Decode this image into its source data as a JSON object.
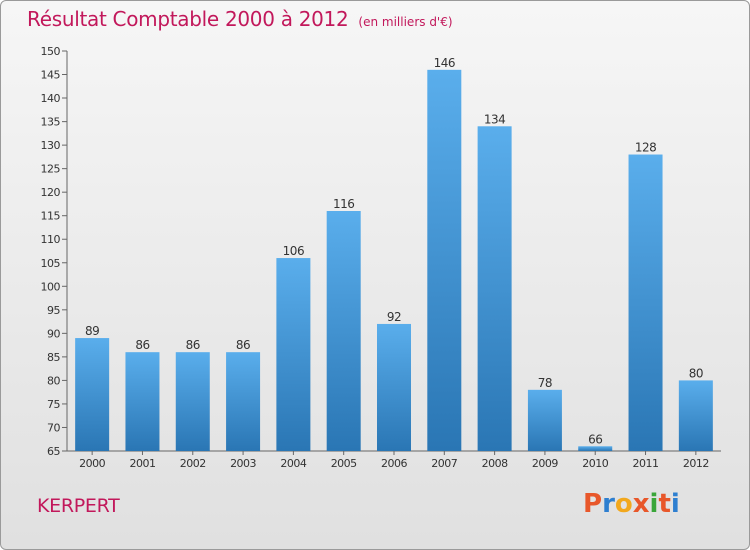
{
  "header": {
    "title": "Résultat Comptable 2000 à 2012",
    "subtitle": "(en milliers d'€)"
  },
  "footer": {
    "commune": "KERPERT",
    "logo_text": "Proxiti"
  },
  "colors": {
    "title": "#c2185b",
    "bar_top": "#5aaeec",
    "bar_bottom": "#2a76b4",
    "logo_letters": [
      "#e8572a",
      "#2e7fd0",
      "#f2a81d",
      "#e8572a",
      "#3aa63a",
      "#e8572a",
      "#2e7fd0"
    ]
  },
  "chart_data": {
    "type": "bar",
    "title": "Résultat Comptable 2000 à 2012",
    "subtitle": "(en milliers d'€)",
    "categories": [
      "2000",
      "2001",
      "2002",
      "2003",
      "2004",
      "2005",
      "2006",
      "2007",
      "2008",
      "2009",
      "2010",
      "2011",
      "2012"
    ],
    "values": [
      89,
      86,
      86,
      86,
      106,
      116,
      92,
      146,
      134,
      78,
      66,
      128,
      80
    ],
    "ylim": [
      65,
      150
    ],
    "yticks": [
      65,
      70,
      75,
      80,
      85,
      90,
      95,
      100,
      105,
      110,
      115,
      120,
      125,
      130,
      135,
      140,
      145,
      150
    ],
    "grid": false,
    "legend": "none"
  }
}
